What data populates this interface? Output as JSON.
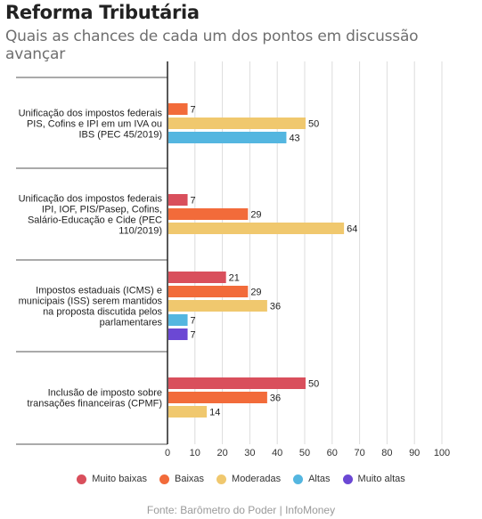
{
  "header": {
    "title": "Reforma Tributária",
    "subtitle": "Quais as chances de cada um dos pontos em discussão avançar"
  },
  "colors": {
    "Muito baixas": "#d94f5c",
    "Baixas": "#f26b3a",
    "Moderadas": "#f0c86e",
    "Altas": "#54b6e0",
    "Muito altas": "#6b48d4"
  },
  "chart_data": {
    "type": "bar",
    "orientation": "horizontal",
    "xlim": [
      0,
      100
    ],
    "ticks": [
      0,
      10,
      20,
      30,
      40,
      50,
      60,
      70,
      80,
      90,
      100
    ],
    "grid": true,
    "legend_position": "bottom",
    "groups": [
      {
        "label": "Unificação dos impostos federais PIS, Cofins e IPI em um IVA ou IBS (PEC 45/2019)",
        "lines": [
          "Unificação dos impostos federais",
          "PIS, Cofins e IPI em um IVA ou",
          "IBS (PEC 45/2019)"
        ],
        "bars": [
          {
            "series": "Baixas",
            "value": 7
          },
          {
            "series": "Moderadas",
            "value": 50
          },
          {
            "series": "Altas",
            "value": 43
          }
        ]
      },
      {
        "label": "Unificação dos impostos federais IPI, IOF, PIS/Pasep, Cofins, Salário-Educação e Cide (PEC 110/2019)",
        "lines": [
          "Unificação dos impostos federais",
          "IPI, IOF, PIS/Pasep, Cofins,",
          "Salário-Educação e Cide (PEC",
          "110/2019)"
        ],
        "bars": [
          {
            "series": "Muito baixas",
            "value": 7
          },
          {
            "series": "Baixas",
            "value": 29
          },
          {
            "series": "Moderadas",
            "value": 64
          }
        ]
      },
      {
        "label": "Impostos estaduais (ICMS) e municipais (ISS) serem mantidos na proposta discutida pelos parlamentares",
        "lines": [
          "Impostos estaduais (ICMS) e",
          "municipais (ISS) serem mantidos",
          "na proposta discutida pelos",
          "parlamentares"
        ],
        "bars": [
          {
            "series": "Muito baixas",
            "value": 21
          },
          {
            "series": "Baixas",
            "value": 29
          },
          {
            "series": "Moderadas",
            "value": 36
          },
          {
            "series": "Altas",
            "value": 7
          },
          {
            "series": "Muito altas",
            "value": 7
          }
        ]
      },
      {
        "label": "Inclusão de imposto sobre transações financeiras (CPMF)",
        "lines": [
          "Inclusão de imposto sobre",
          "transações financeiras (CPMF)"
        ],
        "bars": [
          {
            "series": "Muito baixas",
            "value": 50
          },
          {
            "series": "Baixas",
            "value": 36
          },
          {
            "series": "Moderadas",
            "value": 14
          }
        ]
      }
    ]
  },
  "legend": {
    "items": [
      "Muito baixas",
      "Baixas",
      "Moderadas",
      "Altas",
      "Muito altas"
    ]
  },
  "footer": {
    "source": "Fonte: Barômetro do Poder | InfoMoney"
  }
}
